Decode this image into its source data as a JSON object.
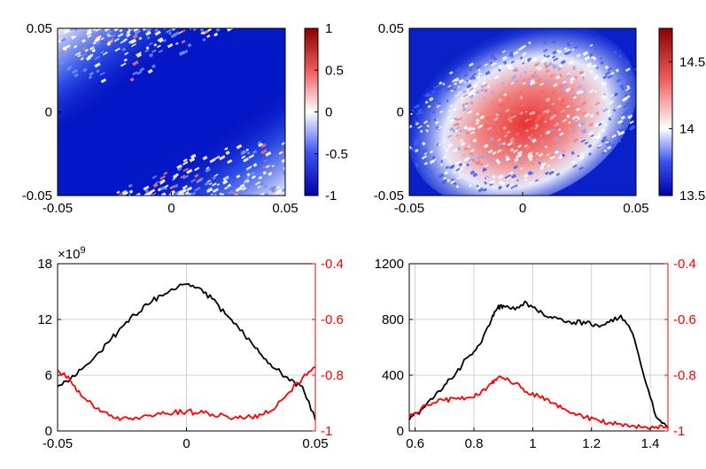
{
  "chart_data": [
    {
      "type": "heatmap",
      "name": "map-1",
      "xlim": [
        -0.05,
        0.05
      ],
      "ylim": [
        -0.05,
        0.05
      ],
      "xticks": [
        "-0.05",
        "0",
        "0.05"
      ],
      "yticks": [
        "-0.05",
        "0",
        "0.05"
      ],
      "colorbar": {
        "min": -1,
        "max": 1,
        "ticks": [
          "1",
          "0.5",
          "0",
          "-0.5",
          "-1"
        ],
        "colormap": "blue-white-red"
      },
      "description_values": {
        "center": -1,
        "corner_top_left": 0.2,
        "corner_bottom_right": 0.2
      }
    },
    {
      "type": "heatmap",
      "name": "map-2",
      "xlim": [
        -0.05,
        0.05
      ],
      "ylim": [
        -0.05,
        0.05
      ],
      "xticks": [
        "-0.05",
        "0",
        "0.05"
      ],
      "yticks": [
        "-0.05",
        "0",
        "0.05"
      ],
      "colorbar": {
        "min": 13.5,
        "max": 14.75,
        "ticks": [
          "14.5",
          "14",
          "13.5"
        ],
        "colormap": "blue-white-red"
      },
      "description_values": {
        "center": 14.6,
        "edge": 13.5
      }
    },
    {
      "type": "line",
      "name": "profile-1",
      "xlim": [
        -0.05,
        0.05
      ],
      "xticks": [
        "-0.05",
        "0",
        "0.05"
      ],
      "left_axis": {
        "ylim": [
          0,
          18
        ],
        "ticks": [
          "0",
          "6",
          "12",
          "18"
        ],
        "exponent": "×10",
        "exponent_power": "9",
        "color": "#000000"
      },
      "right_axis": {
        "ylim": [
          -1,
          -0.4
        ],
        "ticks": [
          "-0.4",
          "-0.6",
          "-0.8",
          "-1"
        ],
        "color": "#ff0000"
      },
      "series": [
        {
          "name": "left-series",
          "axis": "left",
          "color": "#000000",
          "x": [
            -0.05,
            -0.045,
            -0.04,
            -0.035,
            -0.03,
            -0.025,
            -0.02,
            -0.015,
            -0.01,
            -0.005,
            0,
            0.005,
            0.01,
            0.015,
            0.02,
            0.025,
            0.03,
            0.035,
            0.04,
            0.045,
            0.05
          ],
          "y": [
            4.8,
            5.6,
            6.8,
            8.2,
            9.6,
            11.2,
            12.5,
            13.6,
            14.6,
            15.2,
            15.8,
            15.4,
            14.2,
            12.6,
            11.2,
            9.6,
            7.8,
            6.6,
            5.4,
            4.8,
            1.2
          ]
        },
        {
          "name": "right-series",
          "axis": "right",
          "color": "#ff0000",
          "x": [
            -0.05,
            -0.045,
            -0.04,
            -0.035,
            -0.03,
            -0.025,
            -0.02,
            -0.015,
            -0.01,
            -0.005,
            0,
            0.005,
            0.01,
            0.015,
            0.02,
            0.025,
            0.03,
            0.035,
            0.04,
            0.045,
            0.05
          ],
          "y": [
            -0.78,
            -0.82,
            -0.88,
            -0.92,
            -0.945,
            -0.955,
            -0.952,
            -0.945,
            -0.94,
            -0.935,
            -0.93,
            -0.935,
            -0.94,
            -0.945,
            -0.955,
            -0.95,
            -0.94,
            -0.91,
            -0.86,
            -0.81,
            -0.77
          ]
        }
      ]
    },
    {
      "type": "line",
      "name": "profile-2",
      "xlim": [
        0.58,
        1.46
      ],
      "xticks": [
        "0.6",
        "0.8",
        "1",
        "1.2",
        "1.4"
      ],
      "left_axis": {
        "ylim": [
          0,
          1200
        ],
        "ticks": [
          "0",
          "400",
          "800",
          "1200"
        ],
        "color": "#000000"
      },
      "right_axis": {
        "ylim": [
          -1,
          -0.4
        ],
        "ticks": [
          "-0.4",
          "-0.6",
          "-0.8",
          "-1"
        ],
        "color": "#ff0000"
      },
      "series": [
        {
          "name": "left-series",
          "axis": "left",
          "color": "#000000",
          "x": [
            0.58,
            0.62,
            0.66,
            0.7,
            0.74,
            0.78,
            0.82,
            0.86,
            0.88,
            0.9,
            0.94,
            0.98,
            1.02,
            1.06,
            1.1,
            1.14,
            1.18,
            1.22,
            1.26,
            1.3,
            1.34,
            1.38,
            1.42,
            1.46
          ],
          "y": [
            80,
            150,
            230,
            330,
            420,
            530,
            620,
            800,
            880,
            900,
            870,
            920,
            850,
            820,
            800,
            780,
            770,
            760,
            780,
            830,
            700,
            380,
            100,
            20
          ]
        },
        {
          "name": "right-series",
          "axis": "right",
          "color": "#ff0000",
          "x": [
            0.58,
            0.62,
            0.66,
            0.7,
            0.74,
            0.78,
            0.82,
            0.86,
            0.88,
            0.9,
            0.94,
            0.98,
            1.02,
            1.06,
            1.1,
            1.14,
            1.18,
            1.22,
            1.26,
            1.3,
            1.34,
            1.38,
            1.42,
            1.46
          ],
          "y": [
            -0.95,
            -0.92,
            -0.9,
            -0.89,
            -0.885,
            -0.88,
            -0.87,
            -0.83,
            -0.81,
            -0.81,
            -0.83,
            -0.86,
            -0.875,
            -0.9,
            -0.92,
            -0.935,
            -0.95,
            -0.96,
            -0.97,
            -0.975,
            -0.98,
            -0.985,
            -0.985,
            -0.99
          ]
        }
      ]
    }
  ]
}
